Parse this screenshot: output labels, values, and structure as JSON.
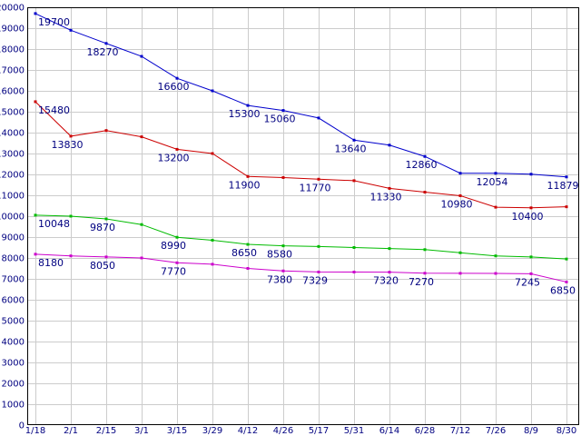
{
  "chart_data": {
    "type": "line",
    "title": "",
    "xlabel": "",
    "ylabel": "",
    "legend": "none",
    "grid": true,
    "background_color": "#ffffff",
    "plot_background": "#ffffff",
    "grid_color": "#cccccc",
    "border_color": "#000000",
    "axis_text_color": "#000080",
    "annotation_text_color": "#000080",
    "y_min": 0,
    "y_max": 20000,
    "y_step": 1000,
    "x_tick_labels": [
      "1/18",
      "2/1",
      "2/15",
      "3/1",
      "3/15",
      "3/29",
      "4/12",
      "4/26",
      "5/17",
      "5/31",
      "6/14",
      "6/28",
      "7/12",
      "7/26",
      "8/9",
      "8/30"
    ],
    "series": [
      {
        "name": "series-blue",
        "color": "#0000cc",
        "values": [
          19700,
          18900,
          18270,
          17650,
          16600,
          16000,
          15300,
          15060,
          14700,
          13640,
          13400,
          12860,
          12054,
          12054,
          12010,
          11879
        ]
      },
      {
        "name": "series-red",
        "color": "#cc0000",
        "values": [
          15480,
          13830,
          14100,
          13800,
          13200,
          13000,
          11900,
          11850,
          11770,
          11700,
          11330,
          11150,
          10980,
          10430,
          10400,
          10450
        ]
      },
      {
        "name": "series-green",
        "color": "#00bb00",
        "values": [
          10048,
          10000,
          9870,
          9600,
          8990,
          8850,
          8650,
          8580,
          8550,
          8500,
          8450,
          8400,
          8250,
          8100,
          8050,
          7950
        ]
      },
      {
        "name": "series-magenta",
        "color": "#cc00cc",
        "values": [
          8180,
          8100,
          8050,
          8000,
          7770,
          7700,
          7500,
          7380,
          7329,
          7325,
          7320,
          7270,
          7265,
          7260,
          7245,
          6850
        ]
      }
    ],
    "annotations": [
      {
        "series": 0,
        "index": 0,
        "text": "19700"
      },
      {
        "series": 0,
        "index": 2,
        "text": "18270"
      },
      {
        "series": 0,
        "index": 4,
        "text": "16600"
      },
      {
        "series": 0,
        "index": 6,
        "text": "15300"
      },
      {
        "series": 0,
        "index": 7,
        "text": "15060"
      },
      {
        "series": 0,
        "index": 9,
        "text": "13640"
      },
      {
        "series": 0,
        "index": 11,
        "text": "12860"
      },
      {
        "series": 0,
        "index": 13,
        "text": "12054"
      },
      {
        "series": 0,
        "index": 15,
        "text": "11879"
      },
      {
        "series": 1,
        "index": 0,
        "text": "15480"
      },
      {
        "series": 1,
        "index": 1,
        "text": "13830"
      },
      {
        "series": 1,
        "index": 4,
        "text": "13200"
      },
      {
        "series": 1,
        "index": 6,
        "text": "11900"
      },
      {
        "series": 1,
        "index": 8,
        "text": "11770"
      },
      {
        "series": 1,
        "index": 10,
        "text": "11330"
      },
      {
        "series": 1,
        "index": 12,
        "text": "10980"
      },
      {
        "series": 1,
        "index": 14,
        "text": "10400"
      },
      {
        "series": 2,
        "index": 0,
        "text": "10048"
      },
      {
        "series": 2,
        "index": 2,
        "text": "9870"
      },
      {
        "series": 2,
        "index": 4,
        "text": "8990"
      },
      {
        "series": 2,
        "index": 6,
        "text": "8650"
      },
      {
        "series": 2,
        "index": 7,
        "text": "8580"
      },
      {
        "series": 3,
        "index": 0,
        "text": "8180"
      },
      {
        "series": 3,
        "index": 2,
        "text": "8050"
      },
      {
        "series": 3,
        "index": 4,
        "text": "7770"
      },
      {
        "series": 3,
        "index": 7,
        "text": "7380"
      },
      {
        "series": 3,
        "index": 8,
        "text": "7329"
      },
      {
        "series": 3,
        "index": 10,
        "text": "7320"
      },
      {
        "series": 3,
        "index": 11,
        "text": "7270"
      },
      {
        "series": 3,
        "index": 14,
        "text": "7245"
      },
      {
        "series": 3,
        "index": 15,
        "text": "6850"
      }
    ]
  }
}
